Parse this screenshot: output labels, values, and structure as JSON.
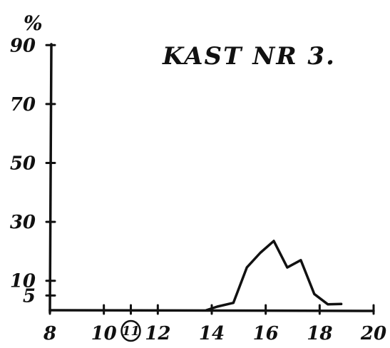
{
  "chart_data": {
    "type": "line",
    "title": "KAST NR 3.",
    "ylabel": "%",
    "xlabel": "",
    "xlim": [
      8,
      20
    ],
    "ylim": [
      0,
      92
    ],
    "x_ticks": [
      8,
      10,
      11,
      12,
      14,
      16,
      18,
      20
    ],
    "x_tick_labels": [
      "8",
      "10",
      "11",
      "12",
      "14",
      "16",
      "18",
      "20"
    ],
    "circled_x_tick": 11,
    "y_ticks": [
      5,
      10,
      30,
      50,
      70,
      90
    ],
    "y_tick_labels": [
      "5",
      "10",
      "30",
      "50",
      "70",
      "90"
    ],
    "grid": false,
    "legend": "none",
    "series": [
      {
        "x": [
          13.8,
          14.2,
          14.8,
          15.3,
          15.8,
          16.3,
          16.8,
          17.3,
          17.8,
          18.3,
          18.8
        ],
        "y": [
          0,
          1.2,
          2.5,
          14.5,
          19.5,
          23.5,
          14.5,
          17,
          5.5,
          2,
          2.1
        ]
      }
    ]
  }
}
